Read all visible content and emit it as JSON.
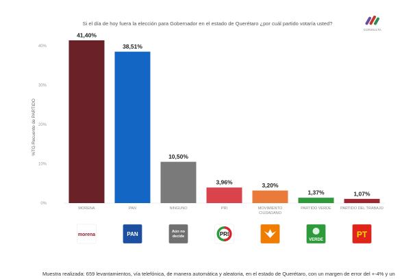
{
  "header": {
    "title": "Si el día de hoy fuera la elección para Gobernador en el estado de Querétaro ¿por cuál partido votaría usted?",
    "brand": "CONSULTA"
  },
  "footer": {
    "text": "Muestra realizada: 659 levantamientos, vía telefónica, de manera automática y aleatoria, en el estado de Querétaro, con un margen de error del +-4% y un"
  },
  "chart_data": {
    "type": "bar",
    "title": "Si el día de hoy fuera la elección para Gobernador en el estado de Querétaro ¿por cuál partido votaría usted?",
    "ylabel": "%TG Recuento de PARTIDO",
    "xlabel": "",
    "ylim": [
      0,
      42
    ],
    "yticks": [
      0,
      10,
      20,
      30,
      40
    ],
    "ytick_labels": [
      "0%",
      "10%",
      "20%",
      "30%",
      "40%"
    ],
    "grid": false,
    "categories": [
      "MORENA",
      "PAN",
      "NINGUNO",
      "PRI",
      "MOVIMIENTO CIUDADANO",
      "PARTIDO VERDE",
      "PARTIDO DEL TRABAJO"
    ],
    "category_lines": [
      [
        "MORENA"
      ],
      [
        "PAN"
      ],
      [
        "NINGUNO"
      ],
      [
        "PRI"
      ],
      [
        "MOVIMIENTO",
        "CIUDADANO"
      ],
      [
        "PARTIDO VERDE"
      ],
      [
        "PARTIDO DEL TRABAJO"
      ]
    ],
    "values": [
      41.4,
      38.51,
      10.5,
      3.96,
      3.2,
      1.37,
      1.07
    ],
    "value_labels": [
      "41,40%",
      "38,51%",
      "10,50%",
      "3,96%",
      "3,20%",
      "1,37%",
      "1,07%"
    ],
    "colors": [
      "#6b2128",
      "#1466c4",
      "#7a7a7a",
      "#d9444c",
      "#ea7a3a",
      "#2f9a3c",
      "#a02530"
    ]
  },
  "logos": [
    {
      "label": "morena",
      "bg": "#ffffff",
      "fg": "#8e1b2b",
      "icon": "morena-logo"
    },
    {
      "label": "PAN",
      "bg": "#1c4fa0",
      "fg": "#ffffff",
      "icon": "pan-logo"
    },
    {
      "label": "Aún no decide",
      "bg": "#707070",
      "fg": "#ffffff",
      "icon": "undecided-logo"
    },
    {
      "label": "PRI",
      "bg": "#ffffff",
      "fg": "#111111",
      "icon": "pri-logo"
    },
    {
      "label": "",
      "bg": "#f07d00",
      "fg": "#ffffff",
      "icon": "movimiento-ciudadano-logo"
    },
    {
      "label": "VERDE",
      "bg": "#2e9b3a",
      "fg": "#ffffff",
      "icon": "verde-logo"
    },
    {
      "label": "PT",
      "bg": "#e2231a",
      "fg": "#ffe100",
      "icon": "pt-logo"
    }
  ]
}
